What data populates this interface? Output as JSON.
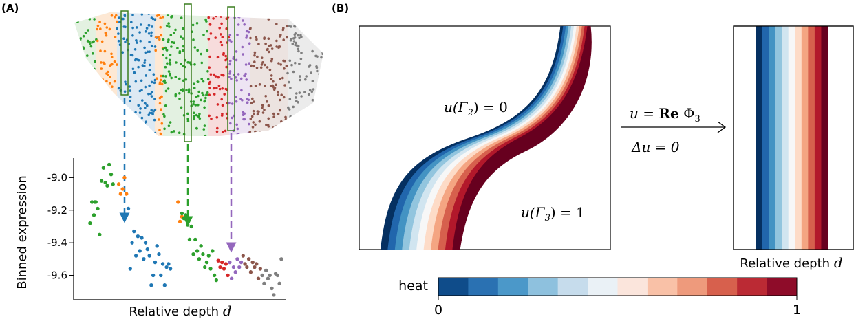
{
  "panel_a": {
    "label": "(A)",
    "ylabel": "Binned expression",
    "xlabel_text": "Relative depth ",
    "xlabel_var": "d",
    "yticks": [
      "-9.0",
      "-9.2",
      "-9.4",
      "-9.6"
    ]
  },
  "panel_b": {
    "label": "(B)",
    "bc_left": "u(Γ",
    "bc_left_sub": "2",
    "bc_left_rhs": ") = 0",
    "bc_right": "u(Γ",
    "bc_right_sub": "3",
    "bc_right_rhs": ") = 1",
    "map_u": "u = ",
    "map_re": "Re",
    "map_phi": " Φ",
    "map_phi_sub": "3",
    "laplace": "Δu = 0",
    "xlabel_text": "Relative depth ",
    "xlabel_var": "d",
    "colorbar_label": "heat",
    "colorbar_min": "0",
    "colorbar_max": "1"
  },
  "colors": {
    "blue": "#1f77b4",
    "orange": "#ff7f0e",
    "green": "#2ca02c",
    "red": "#d62728",
    "purple": "#9467bd",
    "brown": "#8c564b",
    "gray": "#7f7f7f",
    "rdbu": [
      "#053061",
      "#2166ac",
      "#4393c3",
      "#92c5de",
      "#d1e5f0",
      "#f7f7f7",
      "#fddbc7",
      "#f4a582",
      "#d6604d",
      "#b2182b",
      "#67001f"
    ],
    "colorbar": [
      "#0f4c8a",
      "#2a71b2",
      "#4b98c9",
      "#8ec1de",
      "#c6dcec",
      "#eaf1f6",
      "#fbe5dc",
      "#f9c1a7",
      "#ee9a7c",
      "#d7604d",
      "#bb2a34",
      "#8e0c29"
    ]
  },
  "chart_data": {
    "type": "scatter",
    "ylabel": "Binned expression",
    "xlabel": "Relative depth d",
    "ylim": [
      -9.75,
      -8.88
    ],
    "yticks": [
      -9.0,
      -9.2,
      -9.4,
      -9.6
    ],
    "series": [
      {
        "color": "green",
        "values": [
          [
            0.05,
            -9.28
          ],
          [
            0.06,
            -9.15
          ],
          [
            0.07,
            -9.23
          ],
          [
            0.075,
            -9.15
          ],
          [
            0.08,
            -9.15
          ],
          [
            0.09,
            -9.19
          ],
          [
            0.1,
            -9.35
          ],
          [
            0.11,
            -9.02
          ],
          [
            0.12,
            -8.94
          ],
          [
            0.13,
            -9.03
          ],
          [
            0.14,
            -9.05
          ],
          [
            0.15,
            -8.92
          ],
          [
            0.16,
            -8.98
          ],
          [
            0.17,
            -9.04
          ]
        ]
      },
      {
        "color": "orange",
        "values": [
          [
            0.2,
            -9.04
          ],
          [
            0.21,
            -9.1
          ],
          [
            0.22,
            -9.07
          ],
          [
            0.23,
            -9.0
          ],
          [
            0.24,
            -9.1
          ]
        ]
      },
      {
        "color": "blue",
        "values": [
          [
            0.25,
            -9.19
          ],
          [
            0.26,
            -9.56
          ],
          [
            0.27,
            -9.4
          ],
          [
            0.28,
            -9.33
          ],
          [
            0.29,
            -9.48
          ],
          [
            0.3,
            -9.36
          ],
          [
            0.31,
            -9.45
          ],
          [
            0.32,
            -9.37
          ],
          [
            0.33,
            -9.5
          ],
          [
            0.34,
            -9.4
          ],
          [
            0.35,
            -9.44
          ],
          [
            0.36,
            -9.48
          ],
          [
            0.37,
            -9.66
          ],
          [
            0.38,
            -9.6
          ],
          [
            0.39,
            -9.52
          ],
          [
            0.4,
            -9.42
          ],
          [
            0.41,
            -9.47
          ],
          [
            0.42,
            -9.6
          ],
          [
            0.43,
            -9.53
          ],
          [
            0.44,
            -9.66
          ],
          [
            0.45,
            -9.55
          ],
          [
            0.46,
            -9.53
          ],
          [
            0.47,
            -9.56
          ]
        ]
      },
      {
        "color": "orange",
        "values": [
          [
            0.51,
            -9.15
          ],
          [
            0.52,
            -9.27
          ],
          [
            0.53,
            -9.24
          ]
        ]
      },
      {
        "color": "green",
        "values": [
          [
            0.53,
            -9.22
          ],
          [
            0.54,
            -9.25
          ],
          [
            0.55,
            -9.23
          ],
          [
            0.56,
            -9.29
          ],
          [
            0.57,
            -9.38
          ],
          [
            0.58,
            -9.3
          ],
          [
            0.59,
            -9.47
          ],
          [
            0.6,
            -9.38
          ],
          [
            0.61,
            -9.45
          ],
          [
            0.62,
            -9.5
          ],
          [
            0.63,
            -9.42
          ],
          [
            0.64,
            -9.47
          ],
          [
            0.65,
            -9.55
          ],
          [
            0.66,
            -9.52
          ],
          [
            0.67,
            -9.48
          ],
          [
            0.68,
            -9.56
          ],
          [
            0.69,
            -9.45
          ],
          [
            0.7,
            -9.6
          ],
          [
            0.71,
            -9.63
          ]
        ]
      },
      {
        "color": "red",
        "values": [
          [
            0.72,
            -9.51
          ],
          [
            0.73,
            -9.55
          ],
          [
            0.74,
            -9.52
          ],
          [
            0.75,
            -9.56
          ],
          [
            0.76,
            -9.53
          ],
          [
            0.77,
            -9.6
          ]
        ]
      },
      {
        "color": "purple",
        "values": [
          [
            0.78,
            -9.52
          ],
          [
            0.79,
            -9.62
          ],
          [
            0.8,
            -9.55
          ],
          [
            0.81,
            -9.58
          ],
          [
            0.82,
            -9.5
          ],
          [
            0.83,
            -9.55
          ],
          [
            0.84,
            -9.52
          ]
        ]
      },
      {
        "color": "brown",
        "values": [
          [
            0.85,
            -9.48
          ],
          [
            0.86,
            -9.53
          ],
          [
            0.87,
            -9.55
          ],
          [
            0.88,
            -9.5
          ],
          [
            0.89,
            -9.58
          ],
          [
            0.9,
            -9.52
          ],
          [
            0.91,
            -9.55
          ],
          [
            0.92,
            -9.53
          ],
          [
            0.93,
            -9.62
          ],
          [
            0.94,
            -9.56
          ]
        ]
      },
      {
        "color": "gray",
        "values": [
          [
            0.95,
            -9.6
          ],
          [
            0.96,
            -9.65
          ],
          [
            0.97,
            -9.57
          ],
          [
            0.98,
            -9.62
          ],
          [
            0.99,
            -9.6
          ],
          [
            1.0,
            -9.68
          ],
          [
            1.01,
            -9.72
          ],
          [
            1.02,
            -9.59
          ],
          [
            1.03,
            -9.6
          ],
          [
            1.04,
            -9.65
          ],
          [
            1.05,
            -9.5
          ]
        ]
      }
    ]
  }
}
